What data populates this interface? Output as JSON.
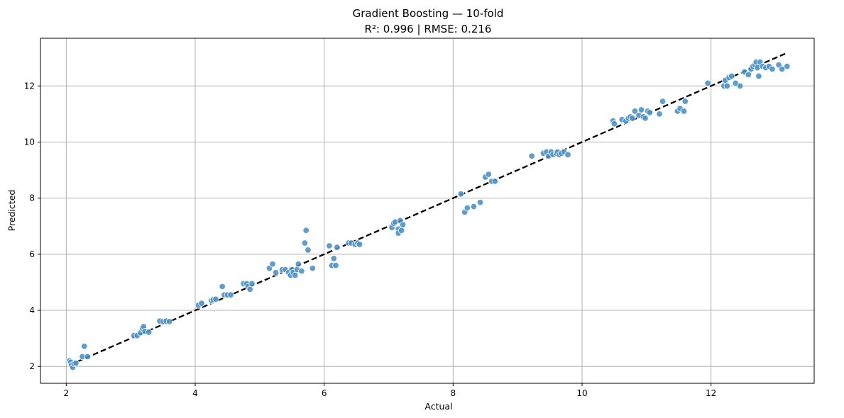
{
  "chart_data": {
    "type": "scatter",
    "title": "Gradient Boosting — 10-fold",
    "subtitle": "R²: 0.996 | RMSE: 0.216",
    "xlabel": "Actual",
    "ylabel": "Predicted",
    "xlim": [
      1.6,
      13.6
    ],
    "ylim": [
      1.4,
      13.7
    ],
    "xticks": [
      2,
      4,
      6,
      8,
      10,
      12
    ],
    "yticks": [
      2,
      4,
      6,
      8,
      10,
      12
    ],
    "grid": true,
    "colors": {
      "points": "#4a8fc4",
      "reference_line": "#000000"
    },
    "reference_line": {
      "style": "dashed",
      "from": [
        2.05,
        2.05
      ],
      "to": [
        13.15,
        13.15
      ]
    },
    "points": [
      [
        2.05,
        2.2
      ],
      [
        2.07,
        2.15
      ],
      [
        2.08,
        2.05
      ],
      [
        2.1,
        1.97
      ],
      [
        2.12,
        2.1
      ],
      [
        2.15,
        2.12
      ],
      [
        2.25,
        2.35
      ],
      [
        2.28,
        2.72
      ],
      [
        2.33,
        2.35
      ],
      [
        3.05,
        3.1
      ],
      [
        3.1,
        3.1
      ],
      [
        3.15,
        3.2
      ],
      [
        3.18,
        3.35
      ],
      [
        3.2,
        3.42
      ],
      [
        3.22,
        3.25
      ],
      [
        3.28,
        3.22
      ],
      [
        3.45,
        3.62
      ],
      [
        3.5,
        3.6
      ],
      [
        3.55,
        3.62
      ],
      [
        3.6,
        3.6
      ],
      [
        4.05,
        4.18
      ],
      [
        4.1,
        4.25
      ],
      [
        4.25,
        4.35
      ],
      [
        4.28,
        4.38
      ],
      [
        4.32,
        4.4
      ],
      [
        4.42,
        4.85
      ],
      [
        4.45,
        4.55
      ],
      [
        4.5,
        4.55
      ],
      [
        4.55,
        4.55
      ],
      [
        4.75,
        4.95
      ],
      [
        4.8,
        4.95
      ],
      [
        4.82,
        4.85
      ],
      [
        4.85,
        4.75
      ],
      [
        4.88,
        4.95
      ],
      [
        5.15,
        5.5
      ],
      [
        5.2,
        5.65
      ],
      [
        5.25,
        5.35
      ],
      [
        5.35,
        5.45
      ],
      [
        5.4,
        5.45
      ],
      [
        5.45,
        5.35
      ],
      [
        5.48,
        5.25
      ],
      [
        5.5,
        5.45
      ],
      [
        5.52,
        5.35
      ],
      [
        5.55,
        5.25
      ],
      [
        5.58,
        5.45
      ],
      [
        5.6,
        5.65
      ],
      [
        5.65,
        5.4
      ],
      [
        5.7,
        6.4
      ],
      [
        5.72,
        6.85
      ],
      [
        5.75,
        6.15
      ],
      [
        5.82,
        5.5
      ],
      [
        6.08,
        6.3
      ],
      [
        6.12,
        5.6
      ],
      [
        6.15,
        5.85
      ],
      [
        6.18,
        5.6
      ],
      [
        6.2,
        6.25
      ],
      [
        6.38,
        6.4
      ],
      [
        6.42,
        6.4
      ],
      [
        6.48,
        6.35
      ],
      [
        6.52,
        6.4
      ],
      [
        6.55,
        6.35
      ],
      [
        7.05,
        6.95
      ],
      [
        7.08,
        7.1
      ],
      [
        7.1,
        7.15
      ],
      [
        7.15,
        6.9
      ],
      [
        7.18,
        7.2
      ],
      [
        7.15,
        6.75
      ],
      [
        7.2,
        6.85
      ],
      [
        7.22,
        7.05
      ],
      [
        8.12,
        8.15
      ],
      [
        8.18,
        7.5
      ],
      [
        8.22,
        7.65
      ],
      [
        8.32,
        7.7
      ],
      [
        8.42,
        7.85
      ],
      [
        8.5,
        8.75
      ],
      [
        8.55,
        8.85
      ],
      [
        8.6,
        8.6
      ],
      [
        8.65,
        8.6
      ],
      [
        9.22,
        9.5
      ],
      [
        9.4,
        9.6
      ],
      [
        9.45,
        9.65
      ],
      [
        9.48,
        9.5
      ],
      [
        9.52,
        9.65
      ],
      [
        9.55,
        9.55
      ],
      [
        9.6,
        9.6
      ],
      [
        9.62,
        9.65
      ],
      [
        9.65,
        9.55
      ],
      [
        9.68,
        9.6
      ],
      [
        9.72,
        9.65
      ],
      [
        9.78,
        9.55
      ],
      [
        10.48,
        10.75
      ],
      [
        10.5,
        10.65
      ],
      [
        10.62,
        10.8
      ],
      [
        10.68,
        10.75
      ],
      [
        10.72,
        10.85
      ],
      [
        10.75,
        10.9
      ],
      [
        10.78,
        10.85
      ],
      [
        10.82,
        11.1
      ],
      [
        10.88,
        10.95
      ],
      [
        10.92,
        11.15
      ],
      [
        10.95,
        10.9
      ],
      [
        10.98,
        10.85
      ],
      [
        11.02,
        11.1
      ],
      [
        11.05,
        11.05
      ],
      [
        11.2,
        11.0
      ],
      [
        11.25,
        11.45
      ],
      [
        11.48,
        11.1
      ],
      [
        11.52,
        11.2
      ],
      [
        11.58,
        11.1
      ],
      [
        11.6,
        11.45
      ],
      [
        11.95,
        12.1
      ],
      [
        12.2,
        12.0
      ],
      [
        12.22,
        12.2
      ],
      [
        12.25,
        12.0
      ],
      [
        12.28,
        12.3
      ],
      [
        12.32,
        12.35
      ],
      [
        12.38,
        12.1
      ],
      [
        12.45,
        12.0
      ],
      [
        12.52,
        12.5
      ],
      [
        12.58,
        12.4
      ],
      [
        12.62,
        12.6
      ],
      [
        12.65,
        12.7
      ],
      [
        12.68,
        12.75
      ],
      [
        12.7,
        12.85
      ],
      [
        12.72,
        12.65
      ],
      [
        12.74,
        12.35
      ],
      [
        12.76,
        12.85
      ],
      [
        12.8,
        12.7
      ],
      [
        12.85,
        12.65
      ],
      [
        12.9,
        12.7
      ],
      [
        12.95,
        12.6
      ],
      [
        13.05,
        12.75
      ],
      [
        13.1,
        12.6
      ],
      [
        13.18,
        12.7
      ]
    ]
  }
}
